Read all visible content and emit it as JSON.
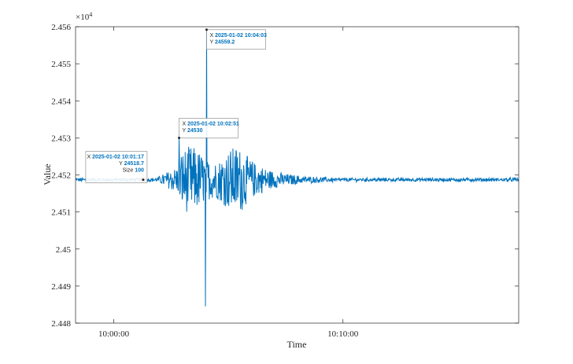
{
  "chart_data": {
    "type": "line",
    "xlabel": "Time",
    "ylabel": "Value",
    "exponent_label": "×10",
    "exponent_power": "4",
    "x_range": [
      "09:58:20",
      "10:17:40"
    ],
    "y_range": [
      24480,
      24560
    ],
    "x_ticks": [
      {
        "time": "10:00:00",
        "label": "10:00:00"
      },
      {
        "time": "10:10:00",
        "label": "10:10:00"
      }
    ],
    "y_ticks": [
      {
        "value": 24480,
        "label": "2.448"
      },
      {
        "value": 24490,
        "label": "2.449"
      },
      {
        "value": 24500,
        "label": "2.45"
      },
      {
        "value": 24510,
        "label": "2.451"
      },
      {
        "value": 24520,
        "label": "2.452"
      },
      {
        "value": 24530,
        "label": "2.453"
      },
      {
        "value": 24540,
        "label": "2.454"
      },
      {
        "value": 24550,
        "label": "2.455"
      },
      {
        "value": 24560,
        "label": "2.456"
      }
    ],
    "series": [
      {
        "color": "#0072BD",
        "baseline": 24518.7,
        "events": [
          {
            "time": "10:02:51",
            "value": 24530
          },
          {
            "time": "10:04:03",
            "value": 24559.2
          },
          {
            "time": "10:04:00",
            "value": 24484.5
          }
        ]
      }
    ],
    "highlight_marker": {
      "time": "10:01:17",
      "value": 24518.7,
      "color": "#D95319"
    },
    "grid": false,
    "box": true
  },
  "datatips": [
    {
      "anchor_time": "10:01:17",
      "anchor_value": 24518.7,
      "x_text": "2025-01-02 10:01:17",
      "y_text": "24518.7",
      "size_label": "Size",
      "size_text": "100"
    },
    {
      "anchor_time": "10:02:51",
      "anchor_value": 24530,
      "x_text": "2025-01-02 10:02:51",
      "y_text": "24530",
      "size_label": "",
      "size_text": ""
    },
    {
      "anchor_time": "10:04:03",
      "anchor_value": 24559.2,
      "x_text": "2025-01-02 10:04:03",
      "y_text": "24559.2",
      "size_label": "",
      "size_text": ""
    }
  ],
  "datatip_labels": {
    "x": "X",
    "y": "Y"
  }
}
